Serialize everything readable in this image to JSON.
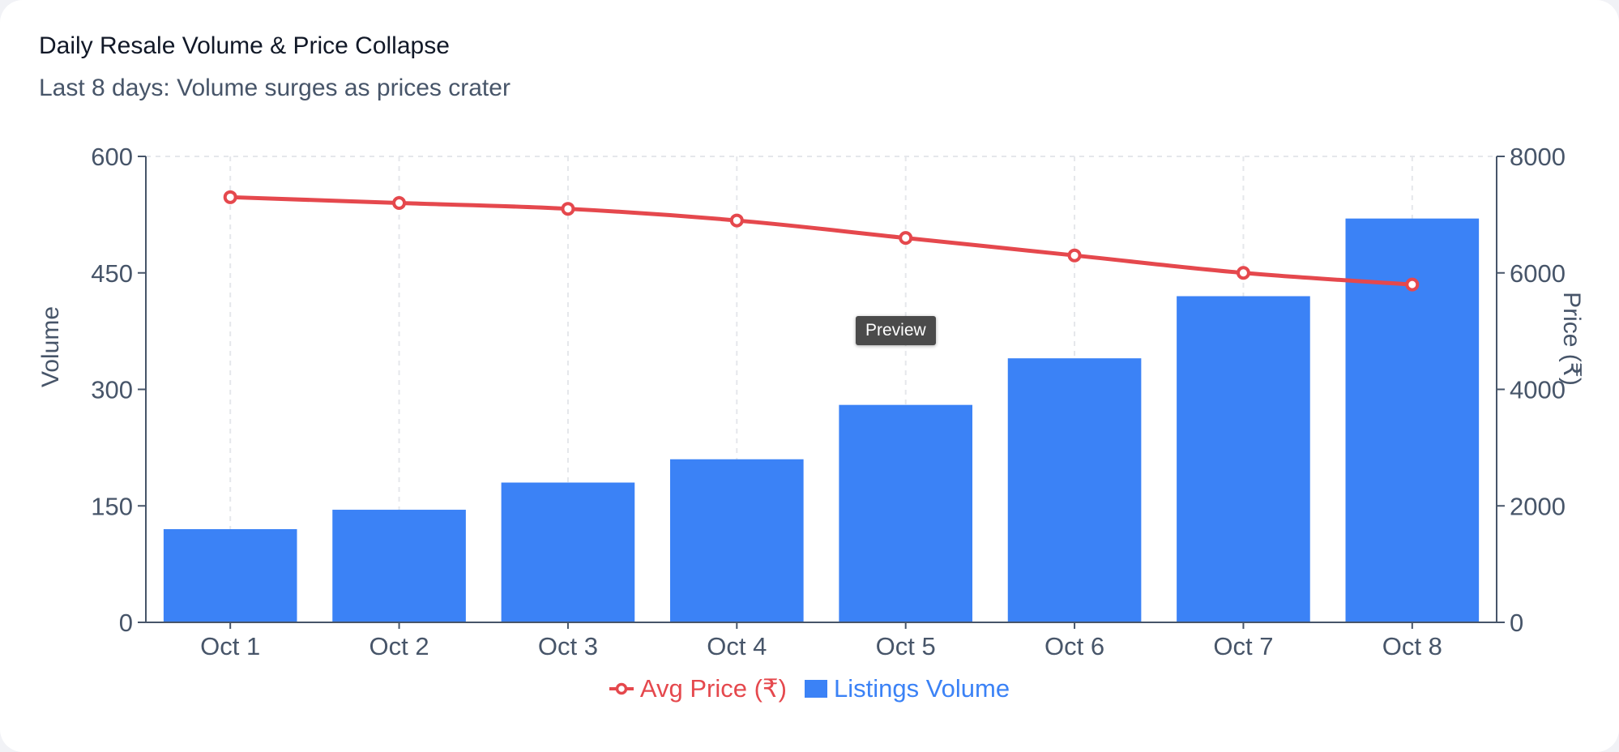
{
  "header": {
    "title": "Daily Resale Volume & Price Collapse",
    "subtitle": "Last 8 days: Volume surges as prices crater"
  },
  "tooltip": {
    "label": "Preview"
  },
  "colors": {
    "bar": "#3b82f6",
    "line": "#e5484d",
    "axis": "#475569",
    "grid": "#e5e7eb"
  },
  "chart_data": {
    "type": "bar",
    "categories": [
      "Oct 1",
      "Oct 2",
      "Oct 3",
      "Oct 4",
      "Oct 5",
      "Oct 6",
      "Oct 7",
      "Oct 8"
    ],
    "series": [
      {
        "name": "Listings Volume",
        "type": "bar",
        "axis": "left",
        "values": [
          120,
          145,
          180,
          210,
          280,
          340,
          420,
          520
        ]
      },
      {
        "name": "Avg Price (₹)",
        "type": "line",
        "axis": "right",
        "values": [
          7300,
          7200,
          7100,
          6900,
          6600,
          6300,
          6000,
          5800
        ]
      }
    ],
    "title": "Daily Resale Volume & Price Collapse",
    "subtitle": "Last 8 days: Volume surges as prices crater",
    "ylabel": "Volume",
    "y2label": "Price (₹)",
    "ylim": [
      0,
      600
    ],
    "y2lim": [
      0,
      8000
    ],
    "yticks": [
      "0",
      "150",
      "300",
      "450",
      "600"
    ],
    "y2ticks": [
      "0",
      "2000",
      "4000",
      "6000",
      "8000"
    ],
    "grid": "vertical-dashed",
    "legend": "bottom-center"
  }
}
